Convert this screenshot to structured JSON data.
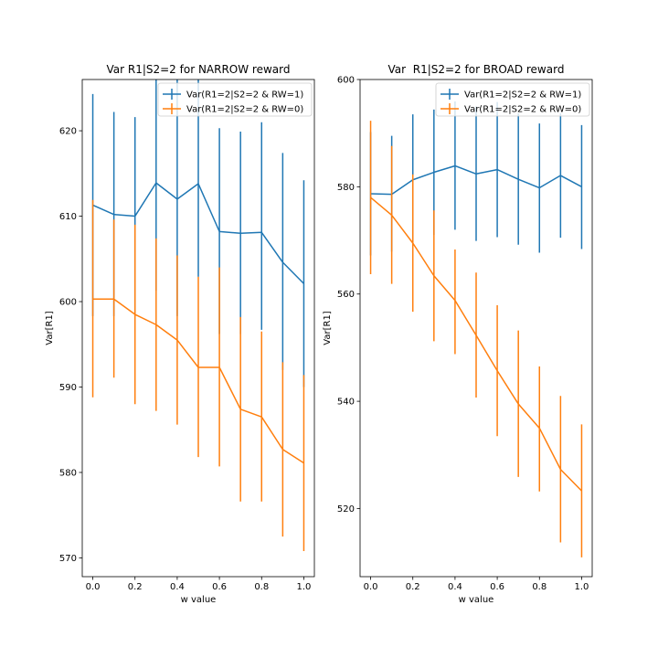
{
  "chart_data": [
    {
      "type": "line",
      "title": "Var R1|S2=2 for NARROW reward",
      "xlabel": "w value",
      "ylabel": "Var[R1]",
      "xlim": [
        -0.05,
        1.05
      ],
      "ylim": [
        567.8,
        626.0
      ],
      "xticks": [
        0.0,
        0.2,
        0.4,
        0.6,
        0.8,
        1.0
      ],
      "xtick_labels": [
        "0.0",
        "0.2",
        "0.4",
        "0.6",
        "0.8",
        "1.0"
      ],
      "yticks": [
        570,
        580,
        590,
        600,
        610,
        620
      ],
      "ytick_labels": [
        "570",
        "580",
        "590",
        "600",
        "610",
        "620"
      ],
      "grid": false,
      "legend_position": "top-right",
      "x": [
        0.0,
        0.1,
        0.2,
        0.3,
        0.4,
        0.5,
        0.6,
        0.7,
        0.8,
        0.9,
        1.0
      ],
      "series": [
        {
          "name": "Var(R1=2|S2=2 & RW=1)",
          "color": "#1f77b4",
          "values": [
            611.3,
            610.2,
            610.0,
            613.9,
            612.0,
            613.8,
            608.2,
            608.0,
            608.1,
            604.6,
            602.1
          ],
          "err_low": [
            598.3,
            598.3,
            598.3,
            601.3,
            598.3,
            602.9,
            596.2,
            596.2,
            596.7,
            592.0,
            590.0
          ],
          "err_high": [
            624.3,
            622.2,
            621.6,
            626.0,
            626.0,
            626.0,
            620.3,
            619.9,
            621.0,
            617.4,
            614.2
          ]
        },
        {
          "name": "Var(R1=2|S2=2 & RW=0)",
          "color": "#ff7f0e",
          "values": [
            600.3,
            600.3,
            598.5,
            597.3,
            595.5,
            592.3,
            592.3,
            587.4,
            586.5,
            582.7,
            581.1
          ],
          "err_low": [
            588.8,
            591.1,
            588.0,
            587.2,
            585.6,
            581.8,
            580.7,
            576.6,
            576.6,
            572.5,
            570.8
          ],
          "err_high": [
            611.9,
            609.6,
            609.0,
            607.4,
            605.4,
            602.9,
            604.0,
            598.2,
            596.5,
            592.9,
            591.4
          ]
        }
      ]
    },
    {
      "type": "line",
      "title": "Var  R1|S2=2 for BROAD reward",
      "xlabel": "w value",
      "ylabel": "Var[R1]",
      "xlim": [
        -0.05,
        1.05
      ],
      "ylim": [
        507.3,
        600.0
      ],
      "xticks": [
        0.0,
        0.2,
        0.4,
        0.6,
        0.8,
        1.0
      ],
      "xtick_labels": [
        "0.0",
        "0.2",
        "0.4",
        "0.6",
        "0.8",
        "1.0"
      ],
      "yticks": [
        520,
        540,
        560,
        580,
        600
      ],
      "ytick_labels": [
        "520",
        "540",
        "560",
        "580",
        "600"
      ],
      "grid": false,
      "legend_position": "top-right",
      "x": [
        0.0,
        0.1,
        0.2,
        0.3,
        0.4,
        0.5,
        0.6,
        0.7,
        0.8,
        0.9,
        1.0
      ],
      "series": [
        {
          "name": "Var(R1=2|S2=2 & RW=1)",
          "color": "#1f77b4",
          "values": [
            578.7,
            578.6,
            581.3,
            582.7,
            583.9,
            582.4,
            583.2,
            581.4,
            579.8,
            582.1,
            580.0
          ],
          "err_low": [
            567.2,
            567.9,
            569.2,
            571.0,
            572.0,
            569.9,
            570.6,
            569.2,
            567.7,
            570.5,
            568.4
          ],
          "err_high": [
            590.2,
            589.5,
            593.5,
            594.4,
            595.9,
            595.0,
            595.8,
            593.7,
            591.8,
            593.7,
            591.5
          ]
        },
        {
          "name": "Var(R1=2|S2=2 & RW=0)",
          "color": "#ff7f0e",
          "values": [
            578.0,
            574.7,
            569.5,
            563.4,
            558.8,
            552.3,
            545.7,
            539.5,
            535.0,
            527.3,
            523.3
          ],
          "err_low": [
            563.7,
            561.9,
            556.7,
            551.2,
            548.8,
            540.7,
            533.5,
            525.9,
            523.2,
            513.7,
            510.9
          ],
          "err_high": [
            592.3,
            587.6,
            582.3,
            575.6,
            568.3,
            564.0,
            557.9,
            553.2,
            546.5,
            541.0,
            535.7
          ]
        }
      ]
    }
  ]
}
